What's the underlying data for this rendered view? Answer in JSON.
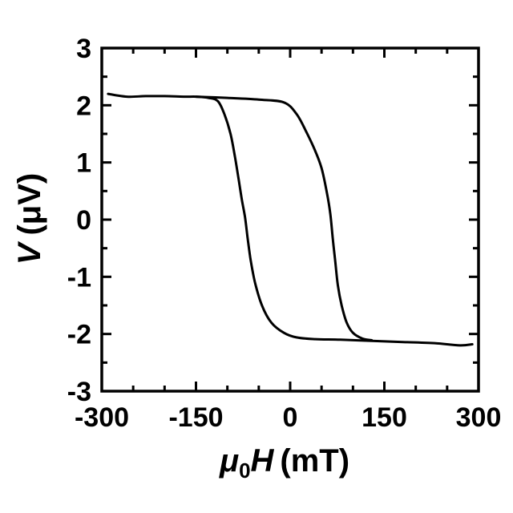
{
  "chart_data": {
    "type": "line",
    "title": "",
    "xlabel": {
      "main": "μ",
      "sub": "0",
      "var": "H",
      "unit": "(mT)"
    },
    "ylabel": {
      "var": "V",
      "unit": "(μV)"
    },
    "xlim": [
      -300,
      300
    ],
    "ylim": [
      -3,
      3
    ],
    "xticks": [
      -300,
      -150,
      0,
      150,
      300
    ],
    "xtick_labels": [
      "-300",
      "-150",
      "0",
      "150",
      "300"
    ],
    "yticks": [
      -3,
      -2,
      -1,
      0,
      1,
      2,
      3
    ],
    "ytick_labels": [
      "-3",
      "-2",
      "-1",
      "0",
      "1",
      "2",
      "3"
    ],
    "grid": false,
    "series": [
      {
        "x": [
          -290,
          -260,
          -230,
          -200,
          -170,
          -150,
          -130,
          -115,
          -105,
          -95,
          -88,
          -82,
          -77,
          -72,
          -68,
          -63,
          -56,
          -45,
          -30,
          -10,
          10,
          40,
          80,
          130,
          180,
          230,
          270,
          290
        ],
        "y": [
          2.2,
          2.15,
          2.16,
          2.16,
          2.15,
          2.15,
          2.13,
          2.07,
          1.85,
          1.5,
          1.1,
          0.7,
          0.35,
          0.05,
          -0.3,
          -0.7,
          -1.1,
          -1.5,
          -1.8,
          -1.98,
          -2.06,
          -2.09,
          -2.1,
          -2.12,
          -2.14,
          -2.16,
          -2.2,
          -2.18
        ]
      },
      {
        "x": [
          -150,
          -100,
          -50,
          -10,
          10,
          25,
          40,
          50,
          58,
          64,
          68,
          72,
          76,
          82,
          90,
          100,
          115,
          130
        ],
        "y": [
          2.15,
          2.13,
          2.1,
          2.05,
          1.85,
          1.55,
          1.2,
          0.9,
          0.5,
          0.1,
          -0.35,
          -0.75,
          -1.15,
          -1.5,
          -1.8,
          -1.98,
          -2.08,
          -2.11
        ]
      }
    ]
  }
}
